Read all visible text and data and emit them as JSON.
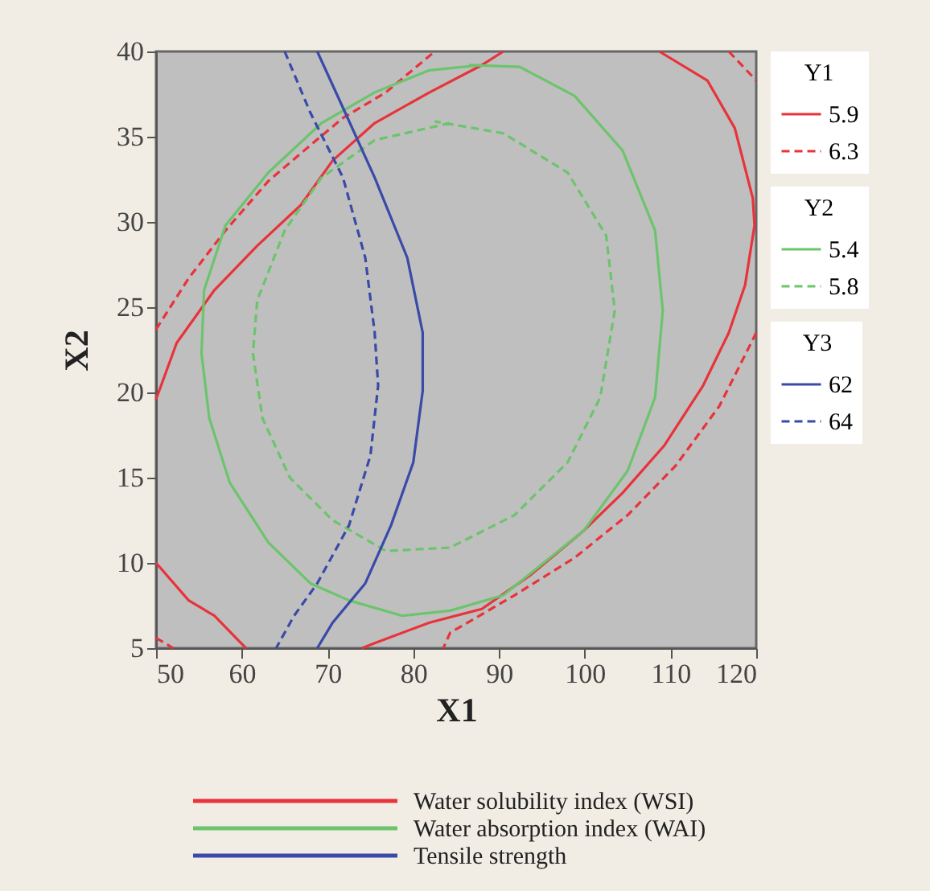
{
  "chart_data": {
    "type": "line",
    "xlabel": "X1",
    "ylabel": "X2",
    "legend_title": [
      "Y1",
      "Y2",
      "Y3"
    ],
    "legend": "right",
    "grid": false,
    "marker": "none",
    "xlim": [
      50,
      120
    ],
    "xticks": [
      50,
      60,
      70,
      80,
      90,
      100,
      110,
      120
    ],
    "ylim": [
      5,
      40
    ],
    "yticks": [
      5,
      10,
      15,
      20,
      25,
      30,
      35,
      40
    ],
    "series": [
      {
        "name": "5.9",
        "color": "#e8333a",
        "line_style": "solid",
        "x": [
          50,
          52.4,
          56.8,
          61.8,
          66.9,
          70.6,
          75.5,
          81.9,
          88,
          90.5,
          null,
          108.7,
          114.3,
          117.5,
          119.6,
          119.8,
          118.7,
          116.8,
          113.8,
          109.3,
          104.4,
          99.9,
          93.7,
          88,
          81.9,
          75.5,
          74,
          null,
          50,
          53.8,
          56.8,
          59.9,
          60.5
        ],
        "values": [
          19.6,
          22.9,
          26.0,
          28.6,
          31.0,
          33.6,
          35.8,
          37.6,
          39.2,
          40,
          null,
          40,
          38.3,
          35.5,
          31.4,
          29.8,
          26.3,
          23.5,
          20.4,
          16.9,
          14.1,
          11.9,
          9.3,
          7.3,
          6.5,
          5.3,
          5,
          null,
          10.0,
          7.8,
          6.9,
          5.3,
          5
        ]
      },
      {
        "name": "6.3",
        "color": "#e8333a",
        "line_style": "dashed",
        "x": [
          50,
          53.8,
          58.1,
          63.1,
          68.0,
          71.8,
          76.8,
          82.5,
          null,
          116.8,
          120,
          null,
          120,
          115.7,
          110.6,
          105,
          98.8,
          91.8,
          84.3,
          83.5,
          null,
          50,
          52
        ],
        "values": [
          23.7,
          26.7,
          29.5,
          32.4,
          34.5,
          36.1,
          37.6,
          40,
          null,
          40,
          38.3,
          null,
          23.5,
          19.2,
          15.7,
          12.8,
          10.3,
          8.1,
          5.9,
          5,
          null,
          5.6,
          5
        ]
      },
      {
        "name": "5.4",
        "color": "#6cc46c",
        "line_style": "solid",
        "x": [
          88,
          81.9,
          75.5,
          69.3,
          63.1,
          58.1,
          55.6,
          55.3,
          56.2,
          58.6,
          63.1,
          68,
          72.5,
          78.7,
          84.3,
          90.5,
          99.9,
          105,
          108.2,
          109.1,
          108.2,
          104.4,
          98.8,
          92.4,
          86.5
        ],
        "values": [
          39.2,
          38.9,
          37.6,
          35.8,
          32.9,
          29.8,
          26,
          22.3,
          18.5,
          14.7,
          11.2,
          8.8,
          7.8,
          6.9,
          7.2,
          8.1,
          11.9,
          15.4,
          19.7,
          24.8,
          29.5,
          34.2,
          37.4,
          39.1,
          39.2
        ]
      },
      {
        "name": "5.8",
        "color": "#6cc46c",
        "line_style": "dashed",
        "x": [
          84.3,
          75.5,
          69.3,
          65,
          61.8,
          61.3,
          62.4,
          65.6,
          70.6,
          76.8,
          84.3,
          91.8,
          98,
          101.8,
          103.5,
          102.5,
          98,
          90.5,
          82.5
        ],
        "values": [
          35.8,
          34.8,
          32.6,
          29.5,
          25.4,
          22.3,
          18.5,
          15,
          12.5,
          10.7,
          10.9,
          12.8,
          15.9,
          19.7,
          24.8,
          29.2,
          32.9,
          35.2,
          35.9
        ]
      },
      {
        "name": "62",
        "color": "#3a4aa8",
        "line_style": "solid",
        "x": [
          68.8,
          71.8,
          75.5,
          79.3,
          81.1,
          81.1,
          80,
          77.4,
          74.4,
          70.6,
          68.8
        ],
        "values": [
          40,
          36.7,
          32.6,
          27.9,
          23.5,
          20.1,
          15.9,
          12.2,
          8.8,
          6.5,
          5
        ]
      },
      {
        "name": "64",
        "color": "#3a4aa8",
        "line_style": "dashed",
        "x": [
          65,
          68,
          71.8,
          74.4,
          75.5,
          75.9,
          75,
          72.5,
          68.8,
          66.1,
          64
        ],
        "values": [
          40,
          36.4,
          32.6,
          27.9,
          23.5,
          20.4,
          16.3,
          12.2,
          8.8,
          6.9,
          5
        ]
      }
    ],
    "annotations": [
      "Water solubility index (WSI)",
      "Water absorption index (WAI)",
      "Tensile strength"
    ]
  }
}
